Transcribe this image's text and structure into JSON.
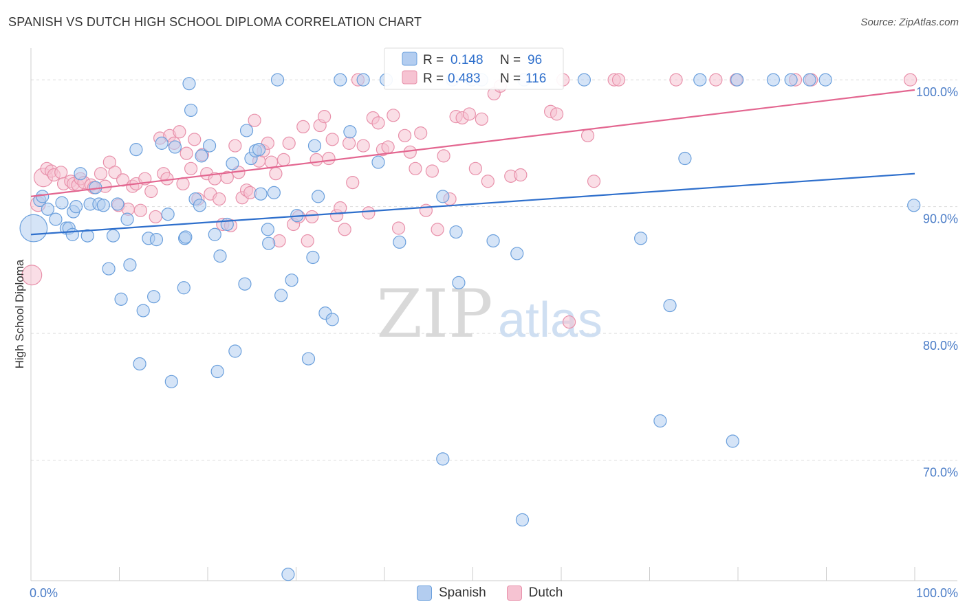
{
  "header": {
    "title": "SPANISH VS DUTCH HIGH SCHOOL DIPLOMA CORRELATION CHART",
    "source": "Source: ZipAtlas.com"
  },
  "watermark": {
    "zip": "ZIP",
    "atlas": "atlas"
  },
  "colors": {
    "spanish": "#6a9fdc",
    "spanish_fill": "#b3cdf0",
    "spanish_line": "#2e6fcc",
    "dutch": "#e890aa",
    "dutch_fill": "#f6c3d2",
    "dutch_line": "#e36690",
    "axis_text": "#4a7cc7",
    "grid": "#dddddd"
  },
  "chart_data": {
    "type": "scatter",
    "title": "SPANISH VS DUTCH HIGH SCHOOL DIPLOMA CORRELATION CHART",
    "xlabel": "",
    "ylabel": "High School Diploma",
    "xlim": [
      0,
      100
    ],
    "ylim": [
      60.5,
      102.5
    ],
    "x_tick_labels": [
      "0.0%",
      "100.0%"
    ],
    "y_ticks": [
      100,
      90,
      80,
      70
    ],
    "y_tick_labels": [
      "100.0%",
      "90.0%",
      "80.0%",
      "70.0%"
    ],
    "legend": [
      {
        "name": "Spanish",
        "r_label": "R = ",
        "r_value": "0.148",
        "n_label": "N = ",
        "n_value": "96"
      },
      {
        "name": "Dutch",
        "r_label": "R = ",
        "r_value": "0.483",
        "n_label": "N = ",
        "n_value": "116"
      }
    ],
    "series": [
      {
        "name": "Spanish",
        "trend": {
          "x": [
            0,
            100
          ],
          "y": [
            87.8,
            92.6
          ]
        },
        "points": [
          [
            0.3,
            88.3,
            2.2
          ],
          [
            1.0,
            90.5,
            1
          ],
          [
            1.3,
            90.8,
            1
          ],
          [
            1.9,
            89.8,
            1
          ],
          [
            2.8,
            89.0,
            1
          ],
          [
            3.5,
            90.3,
            1
          ],
          [
            4.0,
            88.3,
            1
          ],
          [
            4.3,
            88.3,
            1
          ],
          [
            4.7,
            87.8,
            1
          ],
          [
            4.8,
            89.6,
            1
          ],
          [
            5.1,
            90.0,
            1
          ],
          [
            5.6,
            92.6,
            1
          ],
          [
            6.4,
            87.7,
            1
          ],
          [
            6.7,
            90.2,
            1
          ],
          [
            7.3,
            91.5,
            1
          ],
          [
            7.7,
            90.2,
            1
          ],
          [
            8.2,
            90.1,
            1
          ],
          [
            8.8,
            85.1,
            1
          ],
          [
            9.3,
            87.7,
            1
          ],
          [
            9.8,
            90.2,
            1
          ],
          [
            10.2,
            82.7,
            1
          ],
          [
            10.9,
            89.0,
            1
          ],
          [
            11.2,
            85.4,
            1
          ],
          [
            11.9,
            94.5,
            1
          ],
          [
            12.3,
            77.6,
            1
          ],
          [
            12.7,
            81.8,
            1
          ],
          [
            13.3,
            87.5,
            1
          ],
          [
            13.9,
            82.9,
            1
          ],
          [
            14.2,
            87.4,
            1
          ],
          [
            14.8,
            95.0,
            1
          ],
          [
            15.5,
            89.4,
            1
          ],
          [
            15.9,
            76.2,
            1
          ],
          [
            16.3,
            94.7,
            1
          ],
          [
            17.3,
            83.6,
            1
          ],
          [
            17.4,
            87.5,
            1
          ],
          [
            17.5,
            87.6,
            1
          ],
          [
            17.9,
            99.7,
            1
          ],
          [
            18.1,
            97.6,
            1
          ],
          [
            18.6,
            90.6,
            1
          ],
          [
            19.1,
            90.1,
            1
          ],
          [
            19.3,
            94.0,
            1
          ],
          [
            20.2,
            94.8,
            1
          ],
          [
            20.8,
            87.8,
            1
          ],
          [
            21.1,
            77.0,
            1
          ],
          [
            21.4,
            86.1,
            1
          ],
          [
            22.2,
            88.6,
            1
          ],
          [
            22.8,
            93.4,
            1
          ],
          [
            23.1,
            78.6,
            1
          ],
          [
            24.2,
            83.9,
            1
          ],
          [
            24.4,
            96.0,
            1
          ],
          [
            24.9,
            93.8,
            1
          ],
          [
            25.4,
            94.4,
            1
          ],
          [
            25.8,
            94.5,
            1
          ],
          [
            26.0,
            91.0,
            1
          ],
          [
            26.8,
            88.2,
            1
          ],
          [
            26.9,
            87.1,
            1
          ],
          [
            27.5,
            91.1,
            1
          ],
          [
            27.9,
            100.0,
            1
          ],
          [
            28.3,
            83.0,
            1
          ],
          [
            29.1,
            61.0,
            1
          ],
          [
            29.5,
            84.2,
            1
          ],
          [
            30.1,
            89.3,
            1
          ],
          [
            31.4,
            78.0,
            1
          ],
          [
            31.9,
            86.0,
            1
          ],
          [
            32.1,
            94.8,
            1
          ],
          [
            32.5,
            90.8,
            1
          ],
          [
            33.3,
            81.6,
            1
          ],
          [
            34.1,
            81.1,
            1
          ],
          [
            35.0,
            100.0,
            1
          ],
          [
            36.1,
            95.9,
            1
          ],
          [
            37.6,
            100.0,
            1
          ],
          [
            39.3,
            93.5,
            1
          ],
          [
            40.2,
            100.0,
            1
          ],
          [
            41.7,
            87.2,
            1
          ],
          [
            46.6,
            70.1,
            1
          ],
          [
            46.6,
            90.8,
            1
          ],
          [
            47.7,
            100.0,
            1
          ],
          [
            48.1,
            88.0,
            1
          ],
          [
            48.4,
            84.0,
            1
          ],
          [
            49.9,
            100.0,
            1
          ],
          [
            51.0,
            100.0,
            1
          ],
          [
            52.3,
            87.3,
            1
          ],
          [
            55.0,
            86.3,
            1
          ],
          [
            55.6,
            65.3,
            1
          ],
          [
            55.8,
            100.0,
            1
          ],
          [
            62.6,
            100.0,
            1
          ],
          [
            69.0,
            87.5,
            1
          ],
          [
            71.2,
            73.1,
            1
          ],
          [
            72.3,
            82.2,
            1
          ],
          [
            74.0,
            93.8,
            1
          ],
          [
            75.7,
            100.0,
            1
          ],
          [
            79.4,
            71.5,
            1
          ],
          [
            79.9,
            100.0,
            1
          ],
          [
            84.0,
            100.0,
            1
          ],
          [
            86.0,
            100.0,
            1
          ],
          [
            88.1,
            100.0,
            1
          ],
          [
            89.9,
            100.0,
            1
          ],
          [
            99.9,
            90.1,
            1
          ]
        ]
      },
      {
        "name": "Dutch",
        "trend": {
          "x": [
            0,
            100
          ],
          "y": [
            90.8,
            99.2
          ]
        },
        "points": [
          [
            0.1,
            84.6,
            1.6
          ],
          [
            0.8,
            90.2,
            1.2
          ],
          [
            1.4,
            92.3,
            1.5
          ],
          [
            1.8,
            93.0,
            1
          ],
          [
            2.3,
            92.8,
            1
          ],
          [
            2.6,
            92.5,
            1
          ],
          [
            3.4,
            92.7,
            1
          ],
          [
            3.7,
            91.8,
            1
          ],
          [
            4.5,
            92.0,
            1
          ],
          [
            4.8,
            91.8,
            1
          ],
          [
            5.3,
            91.7,
            1
          ],
          [
            5.6,
            92.2,
            1
          ],
          [
            6.0,
            91.9,
            1
          ],
          [
            6.8,
            91.7,
            1
          ],
          [
            7.1,
            91.5,
            1
          ],
          [
            7.9,
            92.6,
            1
          ],
          [
            8.4,
            91.6,
            1
          ],
          [
            8.9,
            93.5,
            1
          ],
          [
            9.5,
            92.7,
            1
          ],
          [
            9.9,
            90.1,
            1
          ],
          [
            10.4,
            92.1,
            1
          ],
          [
            11.0,
            89.8,
            1
          ],
          [
            11.5,
            91.6,
            1
          ],
          [
            11.9,
            91.8,
            1
          ],
          [
            12.4,
            89.7,
            1
          ],
          [
            12.9,
            92.2,
            1
          ],
          [
            13.6,
            91.2,
            1
          ],
          [
            14.1,
            89.2,
            1
          ],
          [
            14.6,
            95.4,
            1
          ],
          [
            15.0,
            92.6,
            1
          ],
          [
            15.4,
            92.2,
            1
          ],
          [
            15.7,
            95.6,
            1
          ],
          [
            16.2,
            95.0,
            1
          ],
          [
            16.8,
            95.9,
            1
          ],
          [
            17.2,
            91.8,
            1
          ],
          [
            17.6,
            94.2,
            1
          ],
          [
            18.1,
            93.0,
            1
          ],
          [
            18.5,
            95.3,
            1
          ],
          [
            18.9,
            90.6,
            1
          ],
          [
            19.4,
            94.1,
            1
          ],
          [
            19.9,
            92.6,
            1
          ],
          [
            20.3,
            91.0,
            1
          ],
          [
            20.8,
            92.2,
            1
          ],
          [
            21.3,
            90.6,
            1
          ],
          [
            21.7,
            88.6,
            1
          ],
          [
            22.2,
            92.3,
            1
          ],
          [
            22.6,
            88.5,
            1
          ],
          [
            23.1,
            94.8,
            1
          ],
          [
            23.5,
            92.7,
            1
          ],
          [
            23.9,
            90.7,
            1
          ],
          [
            24.4,
            91.3,
            1
          ],
          [
            24.8,
            91.1,
            1
          ],
          [
            25.3,
            96.8,
            1
          ],
          [
            25.8,
            93.6,
            1
          ],
          [
            26.3,
            94.4,
            1
          ],
          [
            26.8,
            95.0,
            1
          ],
          [
            27.2,
            93.5,
            1
          ],
          [
            27.7,
            92.6,
            1
          ],
          [
            28.1,
            87.3,
            1
          ],
          [
            28.6,
            93.7,
            1
          ],
          [
            29.2,
            95.0,
            1
          ],
          [
            29.7,
            88.6,
            1
          ],
          [
            30.3,
            89.2,
            1
          ],
          [
            30.8,
            96.3,
            1
          ],
          [
            31.3,
            87.3,
            1
          ],
          [
            31.8,
            89.2,
            1
          ],
          [
            32.3,
            93.7,
            1
          ],
          [
            32.7,
            96.4,
            1
          ],
          [
            33.2,
            97.1,
            1
          ],
          [
            33.7,
            93.8,
            1
          ],
          [
            34.1,
            95.3,
            1
          ],
          [
            34.6,
            89.3,
            1
          ],
          [
            35.0,
            89.9,
            1
          ],
          [
            35.5,
            88.2,
            1
          ],
          [
            36.0,
            95.0,
            1
          ],
          [
            36.4,
            91.9,
            1
          ],
          [
            37.0,
            100.0,
            1
          ],
          [
            37.6,
            94.8,
            1
          ],
          [
            38.2,
            89.5,
            1
          ],
          [
            38.7,
            97.0,
            1
          ],
          [
            39.3,
            96.6,
            1
          ],
          [
            39.8,
            94.5,
            1
          ],
          [
            40.4,
            94.7,
            1
          ],
          [
            41.0,
            97.2,
            1
          ],
          [
            41.6,
            88.3,
            1
          ],
          [
            42.3,
            95.6,
            1
          ],
          [
            42.9,
            94.3,
            1
          ],
          [
            43.5,
            93.0,
            1
          ],
          [
            44.1,
            95.8,
            1
          ],
          [
            44.7,
            89.7,
            1
          ],
          [
            45.4,
            92.8,
            1
          ],
          [
            46.0,
            88.2,
            1
          ],
          [
            46.7,
            94.0,
            1
          ],
          [
            47.4,
            90.6,
            1
          ],
          [
            48.1,
            97.1,
            1
          ],
          [
            48.8,
            97.0,
            1
          ],
          [
            49.6,
            97.3,
            1
          ],
          [
            50.3,
            93.0,
            1
          ],
          [
            51.0,
            96.9,
            1
          ],
          [
            51.7,
            92.0,
            1
          ],
          [
            52.4,
            98.9,
            1
          ],
          [
            53.1,
            99.5,
            1
          ],
          [
            54.3,
            92.4,
            1
          ],
          [
            55.4,
            92.5,
            1
          ],
          [
            58.8,
            97.5,
            1
          ],
          [
            59.5,
            97.3,
            1
          ],
          [
            60.2,
            100.0,
            1
          ],
          [
            60.9,
            80.9,
            1
          ],
          [
            63.0,
            95.6,
            1
          ],
          [
            63.7,
            92.0,
            1
          ],
          [
            66.0,
            100.0,
            1
          ],
          [
            66.5,
            100.0,
            1
          ],
          [
            73.0,
            100.0,
            1
          ],
          [
            77.5,
            100.0,
            1
          ],
          [
            79.8,
            100.0,
            1
          ],
          [
            86.5,
            100.0,
            1
          ],
          [
            88.3,
            100.0,
            1
          ],
          [
            99.5,
            100.0,
            1
          ]
        ]
      }
    ]
  }
}
